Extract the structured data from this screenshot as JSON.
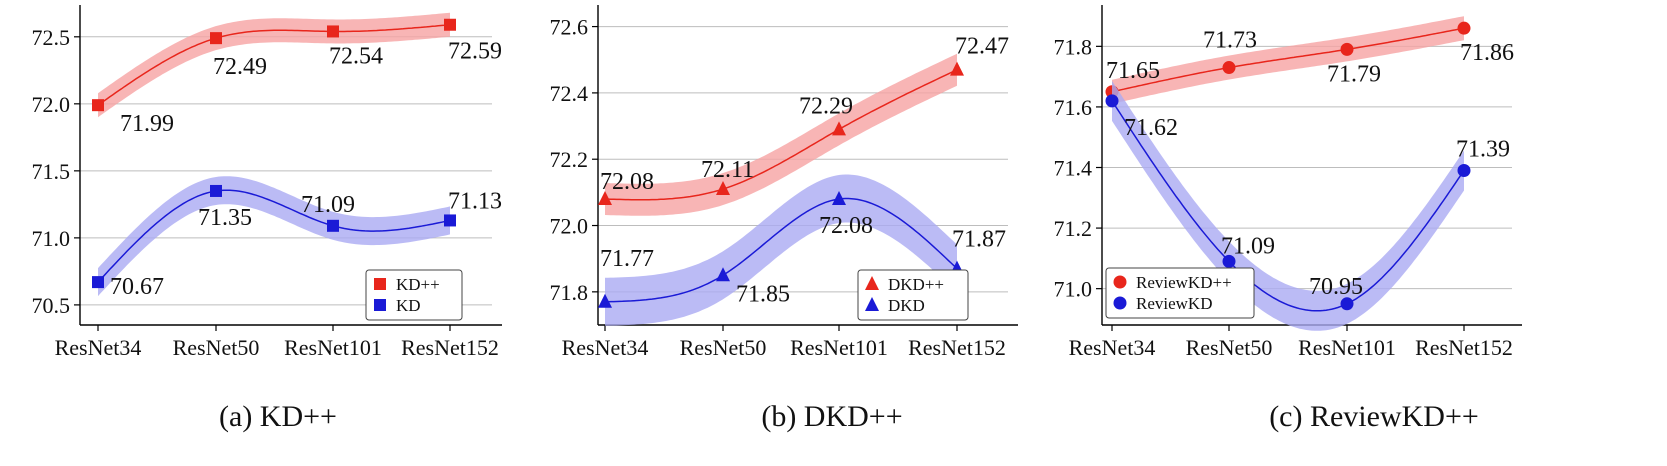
{
  "chart_data": [
    {
      "type": "line",
      "caption": "(a) KD++",
      "categories": [
        "ResNet34",
        "ResNet50",
        "ResNet101",
        "ResNet152"
      ],
      "ylim": [
        70.35,
        72.7
      ],
      "yticks": [
        "70.5",
        "71.0",
        "71.5",
        "72.0",
        "72.5"
      ],
      "legend": "bottom-right",
      "grid": "horizontal",
      "series": [
        {
          "name": "KD++",
          "values": [
            71.99,
            72.49,
            72.54,
            72.59
          ],
          "labels": [
            "71.99",
            "72.49",
            "72.54",
            "72.59"
          ],
          "color": "#e8261c",
          "band": "#f6a3a3",
          "marker": "square"
        },
        {
          "name": "KD",
          "values": [
            70.67,
            71.35,
            71.09,
            71.13
          ],
          "labels": [
            "70.67",
            "71.35",
            "71.09",
            "71.13"
          ],
          "color": "#1a1ad6",
          "band": "#aaaaf2",
          "marker": "square"
        }
      ]
    },
    {
      "type": "line",
      "caption": "(b) DKD++",
      "categories": [
        "ResNet34",
        "ResNet50",
        "ResNet101",
        "ResNet152"
      ],
      "ylim": [
        71.7,
        72.65
      ],
      "yticks": [
        "71.8",
        "72.0",
        "72.2",
        "72.4",
        "72.6"
      ],
      "legend": "bottom-right",
      "grid": "horizontal",
      "series": [
        {
          "name": "DKD++",
          "values": [
            72.08,
            72.11,
            72.29,
            72.47
          ],
          "labels": [
            "72.08",
            "72.11",
            "72.29",
            "72.47"
          ],
          "color": "#e8261c",
          "band": "#f6a3a3",
          "marker": "triangle"
        },
        {
          "name": "DKD",
          "values": [
            71.77,
            71.85,
            72.08,
            71.87
          ],
          "labels": [
            "71.77",
            "71.85",
            "72.08",
            "71.87"
          ],
          "color": "#1a1ad6",
          "band": "#aaaaf2",
          "marker": "triangle"
        }
      ]
    },
    {
      "type": "line",
      "caption": "(c) ReviewKD++",
      "categories": [
        "ResNet34",
        "ResNet50",
        "ResNet101",
        "ResNet152"
      ],
      "ylim": [
        70.88,
        71.92
      ],
      "yticks": [
        "71.0",
        "71.2",
        "71.4",
        "71.6",
        "71.8"
      ],
      "legend": "bottom-left",
      "grid": "horizontal",
      "series": [
        {
          "name": "ReviewKD++",
          "values": [
            71.65,
            71.73,
            71.79,
            71.86
          ],
          "labels": [
            "71.65",
            "71.73",
            "71.79",
            "71.86"
          ],
          "color": "#e8261c",
          "band": "#f6a3a3",
          "marker": "circle"
        },
        {
          "name": "ReviewKD",
          "values": [
            71.62,
            71.09,
            70.95,
            71.39
          ],
          "labels": [
            "71.62",
            "71.09",
            "70.95",
            "71.39"
          ],
          "color": "#1a1ad6",
          "band": "#aaaaf2",
          "marker": "circle"
        }
      ]
    }
  ]
}
